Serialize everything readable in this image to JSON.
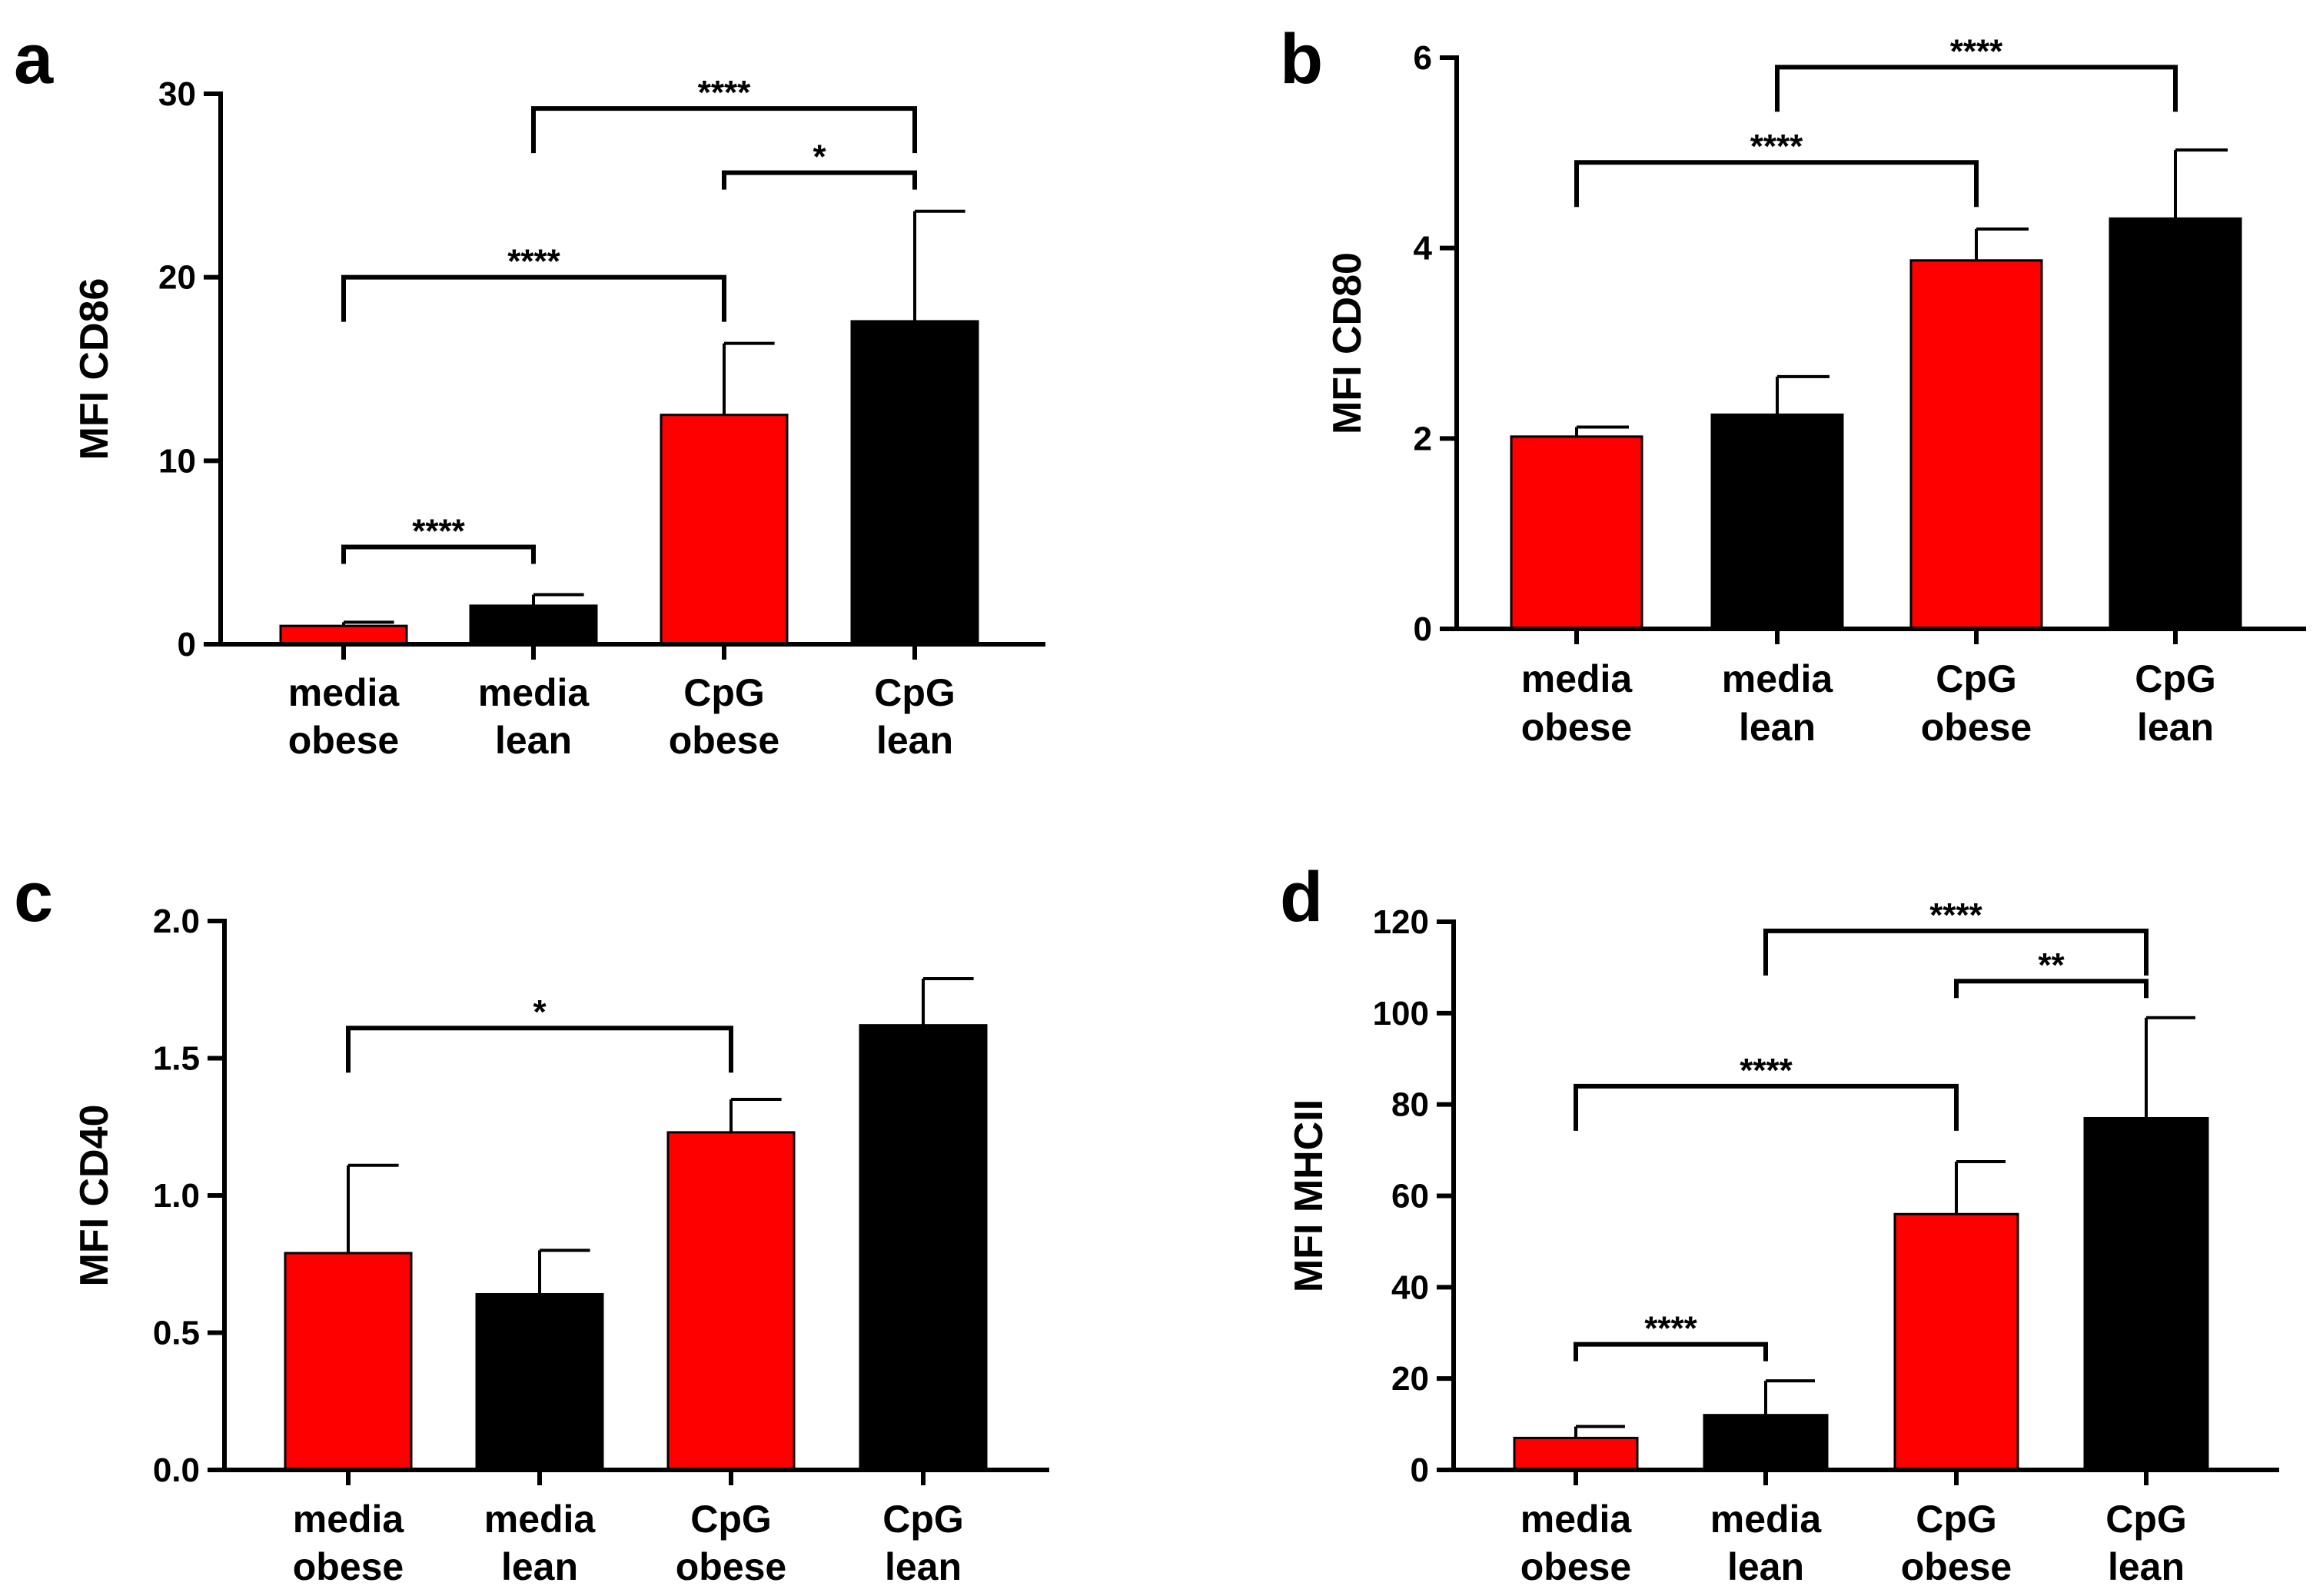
{
  "chart_data": [
    {
      "panel": "a",
      "type": "bar",
      "ylabel": "MFI CD86",
      "categories": [
        [
          "media",
          "obese"
        ],
        [
          "media",
          "lean"
        ],
        [
          "CpG",
          "obese"
        ],
        [
          "CpG",
          "lean"
        ]
      ],
      "values": [
        1.0,
        2.1,
        12.5,
        17.6
      ],
      "errors": [
        0.2,
        0.6,
        3.9,
        6.0
      ],
      "bar_colors": [
        "#ff0000",
        "#000000",
        "#ff0000",
        "#000000"
      ],
      "ylim": [
        0,
        30
      ],
      "yticks": [
        0,
        10,
        20,
        30
      ],
      "ytick_labels": [
        "0",
        "10",
        "20",
        "30"
      ],
      "significance": [
        {
          "from": 0,
          "to": 1,
          "y": 5.3,
          "label": "****"
        },
        {
          "from": 0,
          "to": 2,
          "y": 20.0,
          "label": "****"
        },
        {
          "from": 2,
          "to": 3,
          "y": 25.7,
          "label": "*"
        },
        {
          "from": 1,
          "to": 3,
          "y": 29.2,
          "label": "****"
        }
      ]
    },
    {
      "panel": "b",
      "type": "bar",
      "ylabel": "MFI CD80",
      "categories": [
        [
          "media",
          "obese"
        ],
        [
          "media",
          "lean"
        ],
        [
          "CpG",
          "obese"
        ],
        [
          "CpG",
          "lean"
        ]
      ],
      "values": [
        2.02,
        2.25,
        3.87,
        4.31
      ],
      "errors": [
        0.1,
        0.4,
        0.33,
        0.72
      ],
      "bar_colors": [
        "#ff0000",
        "#000000",
        "#ff0000",
        "#000000"
      ],
      "ylim": [
        0,
        6
      ],
      "yticks": [
        0,
        2,
        4,
        6
      ],
      "ytick_labels": [
        "0",
        "2",
        "4",
        "6"
      ],
      "significance": [
        {
          "from": 0,
          "to": 2,
          "y": 4.9,
          "label": "****"
        },
        {
          "from": 1,
          "to": 3,
          "y": 5.9,
          "label": "****"
        }
      ]
    },
    {
      "panel": "c",
      "type": "bar",
      "ylabel": "MFI CD40",
      "categories": [
        [
          "media",
          "obese"
        ],
        [
          "media",
          "lean"
        ],
        [
          "CpG",
          "obese"
        ],
        [
          "CpG",
          "lean"
        ]
      ],
      "values": [
        0.79,
        0.64,
        1.23,
        1.62
      ],
      "errors": [
        0.32,
        0.16,
        0.12,
        0.17
      ],
      "bar_colors": [
        "#ff0000",
        "#000000",
        "#ff0000",
        "#000000"
      ],
      "ylim": [
        0,
        2.0
      ],
      "yticks": [
        0,
        0.5,
        1.0,
        1.5,
        2.0
      ],
      "ytick_labels": [
        "0.0",
        "0.5",
        "1.0",
        "1.5",
        "2.0"
      ],
      "significance": [
        {
          "from": 0,
          "to": 2,
          "y": 1.61,
          "label": "*"
        }
      ]
    },
    {
      "panel": "d",
      "type": "bar",
      "ylabel": "MFI MHCII",
      "categories": [
        [
          "media",
          "obese"
        ],
        [
          "media",
          "lean"
        ],
        [
          "CpG",
          "obese"
        ],
        [
          "CpG",
          "lean"
        ]
      ],
      "values": [
        7,
        12,
        56,
        77
      ],
      "errors": [
        2.5,
        7.5,
        11.5,
        22
      ],
      "bar_colors": [
        "#ff0000",
        "#000000",
        "#ff0000",
        "#000000"
      ],
      "ylim": [
        0,
        120
      ],
      "yticks": [
        0,
        20,
        40,
        60,
        80,
        100,
        120
      ],
      "ytick_labels": [
        "0",
        "20",
        "40",
        "60",
        "80",
        "100",
        "120"
      ],
      "significance": [
        {
          "from": 0,
          "to": 1,
          "y": 27.5,
          "label": "****"
        },
        {
          "from": 0,
          "to": 2,
          "y": 84,
          "label": "****"
        },
        {
          "from": 2,
          "to": 3,
          "y": 107,
          "label": "**"
        },
        {
          "from": 1,
          "to": 3,
          "y": 118,
          "label": "****"
        }
      ]
    }
  ],
  "colors": {
    "red": "#ff0000",
    "black": "#000000"
  }
}
